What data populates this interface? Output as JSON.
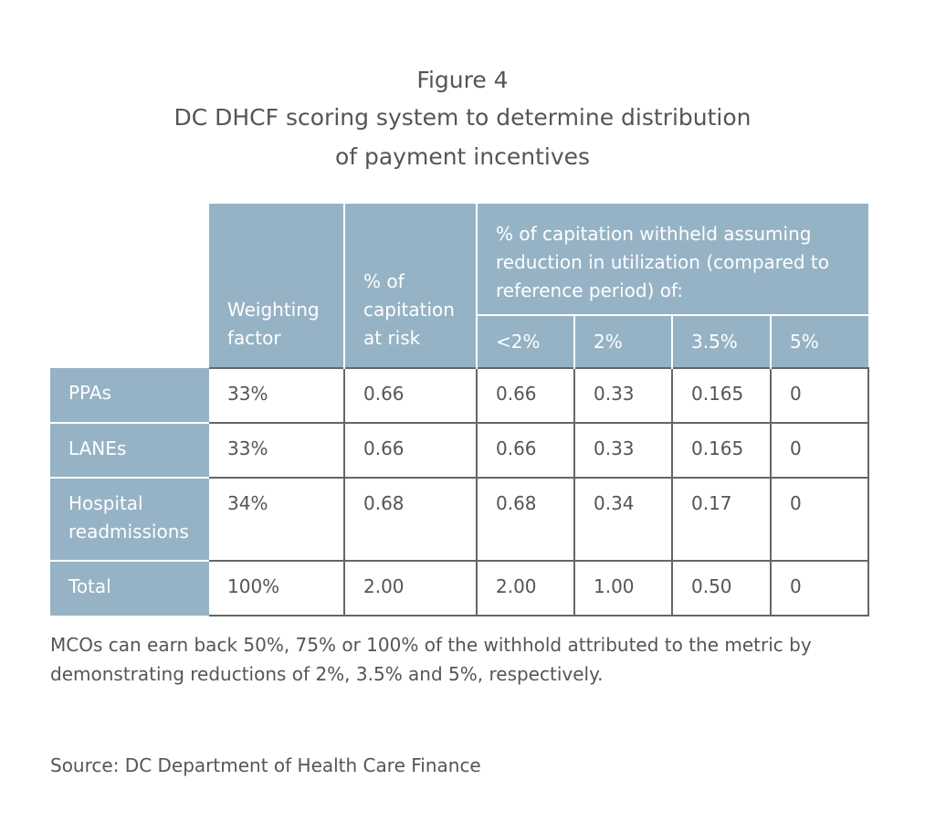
{
  "figure": {
    "number": "Figure 4",
    "title_line1": "DC DHCF scoring system to determine distribution",
    "title_line2": "of payment incentives"
  },
  "table": {
    "header": {
      "weighting": "Weighting factor",
      "capitation": "% of capitation at risk",
      "withheld": "% of capitation withheld assuming reduction in utilization (compared to reference period) of:",
      "thresholds": [
        "<2%",
        "2%",
        "3.5%",
        "5%"
      ]
    },
    "rows": [
      {
        "label": "PPAs",
        "weighting": "33%",
        "capitation": "0.66",
        "values": [
          "0.66",
          "0.33",
          "0.165",
          "0"
        ]
      },
      {
        "label": "LANEs",
        "weighting": "33%",
        "capitation": "0.66",
        "values": [
          "0.66",
          "0.33",
          "0.165",
          "0"
        ]
      },
      {
        "label": "Hospital readmissions",
        "weighting": "34%",
        "capitation": "0.68",
        "values": [
          "0.68",
          "0.34",
          "0.17",
          "0"
        ]
      },
      {
        "label": "Total",
        "weighting": "100%",
        "capitation": "2.00",
        "values": [
          "2.00",
          "1.00",
          "0.50",
          "0"
        ]
      }
    ]
  },
  "note": "MCOs can earn back 50%, 75% or 100% of the withhold attributed to the metric by demonstrating reductions of 2%, 3.5% and 5%, respectively.",
  "source": "Source: DC Department of Health Care Finance",
  "colors": {
    "header_fill": "#96b3c5",
    "grid_line": "#666666",
    "text": "#555555"
  }
}
